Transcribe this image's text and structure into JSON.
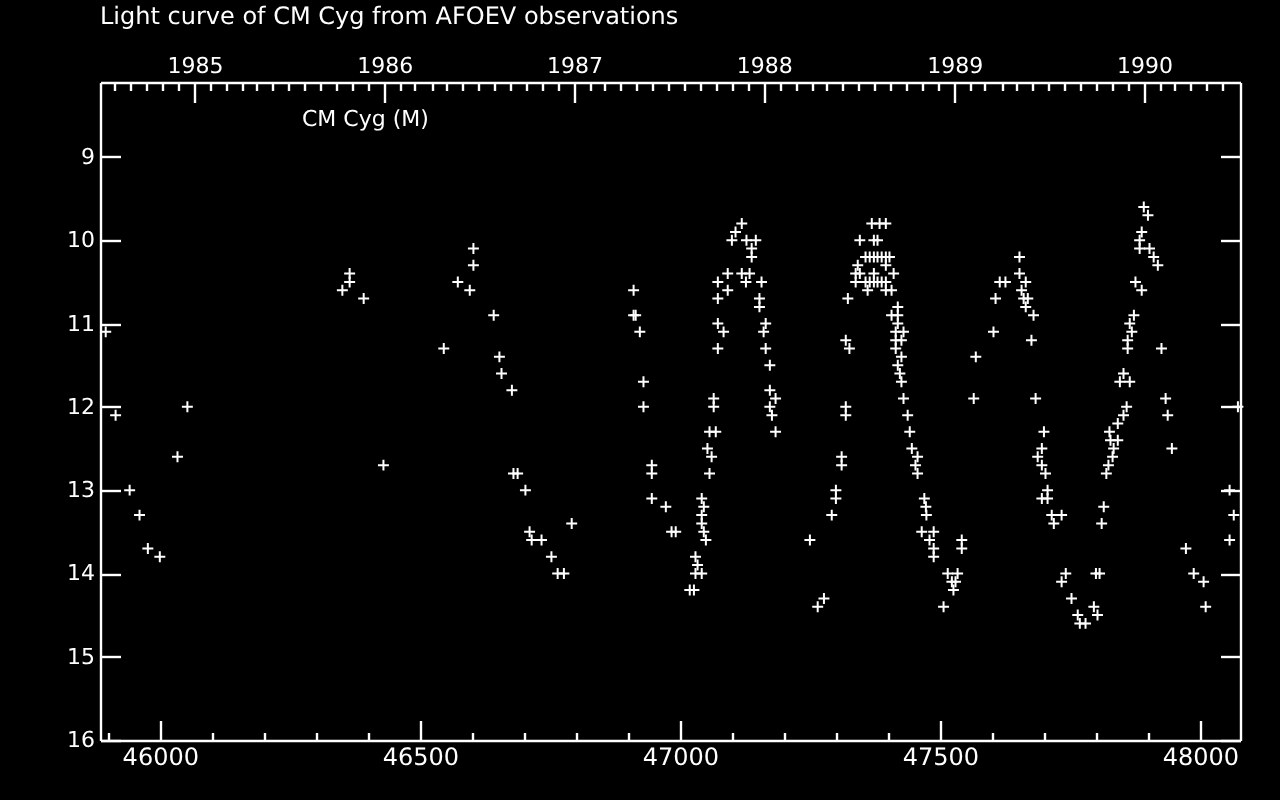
{
  "chart_data": {
    "type": "scatter",
    "title": "Light curve of CM Cyg from AFOEV observations",
    "annotations": [
      "CM Cyg (M)"
    ],
    "color": "#ffffff",
    "marker": "cross",
    "x": [
      45896,
      45915,
      45942,
      45961,
      45977,
      46000,
      46034,
      46053,
      46351,
      46365,
      46365,
      46392,
      46430,
      46546,
      46573,
      46596,
      46603,
      46603,
      46642,
      46653,
      46657,
      46677,
      46680,
      46688,
      46703,
      46711,
      46715,
      46734,
      46753,
      46765,
      46777,
      46792,
      46911,
      46911,
      46915,
      46923,
      46930,
      46930,
      46946,
      46946,
      46946,
      46973,
      46984,
      46992,
      47019,
      47027,
      47030,
      47034,
      47030,
      47042,
      47050,
      47046,
      47042,
      47042,
      47046,
      47042,
      47057,
      47061,
      47053,
      47057,
      47069,
      47065,
      47065,
      47073,
      47084,
      47073,
      47073,
      47073,
      47092,
      47092,
      47100,
      47107,
      47119,
      47128,
      47146,
      47138,
      47138,
      47119,
      47134,
      47127,
      47157,
      47153,
      47153,
      47165,
      47161,
      47165,
      47173,
      47173,
      47184,
      47173,
      47177,
      47184,
      47250,
      47277,
      47265,
      47292,
      47300,
      47300,
      47311,
      47311,
      47319,
      47319,
      47319,
      47326,
      47323,
      47338,
      47338,
      47342,
      47346,
      47369,
      47384,
      47396,
      47373,
      47380,
      47357,
      47365,
      47373,
      47380,
      47388,
      47396,
      47403,
      47396,
      47346,
      47373,
      47411,
      47357,
      47365,
      47373,
      47380,
      47388,
      47396,
      47361,
      47396,
      47407,
      47419,
      47407,
      47419,
      47419,
      47415,
      47430,
      47415,
      47426,
      47415,
      47426,
      47419,
      47423,
      47426,
      47430,
      47438,
      47442,
      47446,
      47457,
      47453,
      47457,
      47470,
      47473,
      47474,
      47465,
      47488,
      47480,
      47488,
      47488,
      47542,
      47542,
      47515,
      47534,
      47523,
      47530,
      47526,
      47507,
      47569,
      47565,
      47603,
      47607,
      47615,
      47626,
      47653,
      47653,
      47665,
      47657,
      47661,
      47669,
      47665,
      47680,
      47676,
      47684,
      47700,
      47696,
      47688,
      47696,
      47703,
      47707,
      47696,
      47707,
      47715,
      47734,
      47719,
      47742,
      47734,
      47753,
      47765,
      47769,
      47780,
      47796,
      47803,
      47800,
      47807,
      47811,
      47815,
      47820,
      47824,
      47832,
      47834,
      47828,
      47842,
      47826,
      47842,
      47853,
      47859,
      47846,
      47865,
      47853,
      47861,
      47861,
      47869,
      47865,
      47873,
      47876,
      47888,
      47884,
      47884,
      47888,
      47892,
      47900,
      47903,
      47911,
      47919,
      47926,
      47934,
      47938,
      47946,
      47973,
      47988,
      48007,
      48011,
      48057,
      48065,
      48057,
      48073
    ],
    "values": [
      11.1,
      12.1,
      13.0,
      13.3,
      13.7,
      13.8,
      12.6,
      12.0,
      10.6,
      10.4,
      10.5,
      10.7,
      12.7,
      11.3,
      10.5,
      10.6,
      10.1,
      10.3,
      10.9,
      11.4,
      11.6,
      11.8,
      12.8,
      12.8,
      13.0,
      13.5,
      13.6,
      13.6,
      13.8,
      14.0,
      14.0,
      13.4,
      10.6,
      10.9,
      10.9,
      11.1,
      11.7,
      12.0,
      12.7,
      12.8,
      13.1,
      13.2,
      13.5,
      13.5,
      14.2,
      14.2,
      13.8,
      13.9,
      14.0,
      14.0,
      13.6,
      13.5,
      13.4,
      13.3,
      13.2,
      13.1,
      12.8,
      12.6,
      12.5,
      12.3,
      12.3,
      12.0,
      11.9,
      11.3,
      11.1,
      11.0,
      10.7,
      10.5,
      10.6,
      10.4,
      10.0,
      9.9,
      9.8,
      10.0,
      10.0,
      10.1,
      10.2,
      10.4,
      10.4,
      10.5,
      10.5,
      10.7,
      10.8,
      11.0,
      11.1,
      11.3,
      11.5,
      11.8,
      11.9,
      12.0,
      12.1,
      12.3,
      13.6,
      14.3,
      14.4,
      13.3,
      13.1,
      13.0,
      12.7,
      12.6,
      12.1,
      12.0,
      11.2,
      11.3,
      10.7,
      10.5,
      10.4,
      10.3,
      10.0,
      9.8,
      9.8,
      9.8,
      10.0,
      10.0,
      10.2,
      10.2,
      10.2,
      10.2,
      10.2,
      10.2,
      10.2,
      10.3,
      10.4,
      10.4,
      10.4,
      10.5,
      10.5,
      10.5,
      10.5,
      10.5,
      10.5,
      10.6,
      10.6,
      10.6,
      10.8,
      10.9,
      10.9,
      11.0,
      11.1,
      11.1,
      11.2,
      11.2,
      11.3,
      11.4,
      11.5,
      11.6,
      11.7,
      11.9,
      12.1,
      12.3,
      12.5,
      12.6,
      12.7,
      12.8,
      13.1,
      13.2,
      13.3,
      13.5,
      13.5,
      13.6,
      13.7,
      13.8,
      13.6,
      13.7,
      14.0,
      14.0,
      14.1,
      14.1,
      14.2,
      14.4,
      11.4,
      11.9,
      11.1,
      10.7,
      10.5,
      10.5,
      10.2,
      10.4,
      10.5,
      10.6,
      10.7,
      10.7,
      10.8,
      10.9,
      11.2,
      11.9,
      12.3,
      12.5,
      12.6,
      12.7,
      12.8,
      13.0,
      13.1,
      13.1,
      13.3,
      13.3,
      13.4,
      14.0,
      14.1,
      14.3,
      14.5,
      14.6,
      14.6,
      14.4,
      14.5,
      14.0,
      14.0,
      13.4,
      13.2,
      12.8,
      12.7,
      12.6,
      12.5,
      12.4,
      12.4,
      12.3,
      12.2,
      12.1,
      12.0,
      11.7,
      11.7,
      11.6,
      11.3,
      11.2,
      11.1,
      11.0,
      10.9,
      10.5,
      10.6,
      10.1,
      10.0,
      9.9,
      9.6,
      9.7,
      10.1,
      10.2,
      10.3,
      11.3,
      11.9,
      12.1,
      12.5,
      13.7,
      14.0,
      14.1,
      14.4,
      13.0,
      13.3,
      13.6,
      12.0
    ],
    "xlim": [
      45885,
      48077
    ],
    "xticks": [
      {
        "value": 45900,
        "label": null
      },
      46000,
      {
        "value": 46100,
        "label": null
      },
      {
        "value": 46200,
        "label": null
      },
      {
        "value": 46300,
        "label": null
      },
      {
        "value": 46400,
        "label": null
      },
      46500,
      {
        "value": 46600,
        "label": null
      },
      {
        "value": 46700,
        "label": null
      },
      {
        "value": 46800,
        "label": null
      },
      {
        "value": 46900,
        "label": null
      },
      47000,
      {
        "value": 47100,
        "label": null
      },
      {
        "value": 47200,
        "label": null
      },
      {
        "value": 47300,
        "label": null
      },
      {
        "value": 47400,
        "label": null
      },
      47500,
      {
        "value": 47600,
        "label": null
      },
      {
        "value": 47700,
        "label": null
      },
      {
        "value": 47800,
        "label": null
      },
      {
        "value": 47900,
        "label": null
      },
      48000
    ],
    "ylim": [
      16,
      8.1
    ],
    "yticks": [
      9,
      10,
      11,
      12,
      13,
      14,
      15,
      16
    ],
    "x2lim": [
      "1984-07-03T12:00",
      "1990-07-04T12:00"
    ],
    "x2ticks": [
      {
        "value": "1984-08",
        "label": null
      },
      {
        "value": "1984-09",
        "label": null
      },
      {
        "value": "1984-10",
        "label": null
      },
      {
        "value": "1984-11",
        "label": null
      },
      {
        "value": "1984-12",
        "label": null
      },
      "1985",
      {
        "value": "1985-02",
        "label": null
      },
      {
        "value": "1985-03",
        "label": null
      },
      {
        "value": "1985-04",
        "label": null
      },
      {
        "value": "1985-05",
        "label": null
      },
      {
        "value": "1985-06",
        "label": null
      },
      {
        "value": "1985-07",
        "label": null
      },
      {
        "value": "1985-08",
        "label": null
      },
      {
        "value": "1985-09",
        "label": null
      },
      {
        "value": "1985-10",
        "label": null
      },
      {
        "value": "1985-11",
        "label": null
      },
      {
        "value": "1985-12",
        "label": null
      },
      "1986",
      {
        "value": "1986-02",
        "label": null
      },
      {
        "value": "1986-03",
        "label": null
      },
      {
        "value": "1986-04",
        "label": null
      },
      {
        "value": "1986-05",
        "label": null
      },
      {
        "value": "1986-06",
        "label": null
      },
      {
        "value": "1986-07",
        "label": null
      },
      {
        "value": "1986-08",
        "label": null
      },
      {
        "value": "1986-09",
        "label": null
      },
      {
        "value": "1986-10",
        "label": null
      },
      {
        "value": "1986-11",
        "label": null
      },
      {
        "value": "1986-12",
        "label": null
      },
      "1987",
      {
        "value": "1987-02",
        "label": null
      },
      {
        "value": "1987-03",
        "label": null
      },
      {
        "value": "1987-04",
        "label": null
      },
      {
        "value": "1987-05",
        "label": null
      },
      {
        "value": "1987-06",
        "label": null
      },
      {
        "value": "1987-07",
        "label": null
      },
      {
        "value": "1987-08",
        "label": null
      },
      {
        "value": "1987-09",
        "label": null
      },
      {
        "value": "1987-10",
        "label": null
      },
      {
        "value": "1987-11",
        "label": null
      },
      {
        "value": "1987-12",
        "label": null
      },
      "1988",
      {
        "value": "1988-02",
        "label": null
      },
      {
        "value": "1988-03",
        "label": null
      },
      {
        "value": "1988-04",
        "label": null
      },
      {
        "value": "1988-05",
        "label": null
      },
      {
        "value": "1988-06",
        "label": null
      },
      {
        "value": "1988-07",
        "label": null
      },
      {
        "value": "1988-08",
        "label": null
      },
      {
        "value": "1988-09",
        "label": null
      },
      {
        "value": "1988-10",
        "label": null
      },
      {
        "value": "1988-11",
        "label": null
      },
      {
        "value": "1988-12",
        "label": null
      },
      "1989",
      {
        "value": "1989-02",
        "label": null
      },
      {
        "value": "1989-03",
        "label": null
      },
      {
        "value": "1989-04",
        "label": null
      },
      {
        "value": "1989-05",
        "label": null
      },
      {
        "value": "1989-06",
        "label": null
      },
      {
        "value": "1989-07",
        "label": null
      },
      {
        "value": "1989-08",
        "label": null
      },
      {
        "value": "1989-09",
        "label": null
      },
      {
        "value": "1989-10",
        "label": null
      },
      {
        "value": "1989-11",
        "label": null
      },
      {
        "value": "1989-12",
        "label": null
      },
      "1990",
      {
        "value": "1990-02",
        "label": null
      },
      {
        "value": "1990-03",
        "label": null
      },
      {
        "value": "1990-04",
        "label": null
      },
      {
        "value": "1990-05",
        "label": null
      },
      {
        "value": "1990-06",
        "label": null
      }
    ]
  }
}
